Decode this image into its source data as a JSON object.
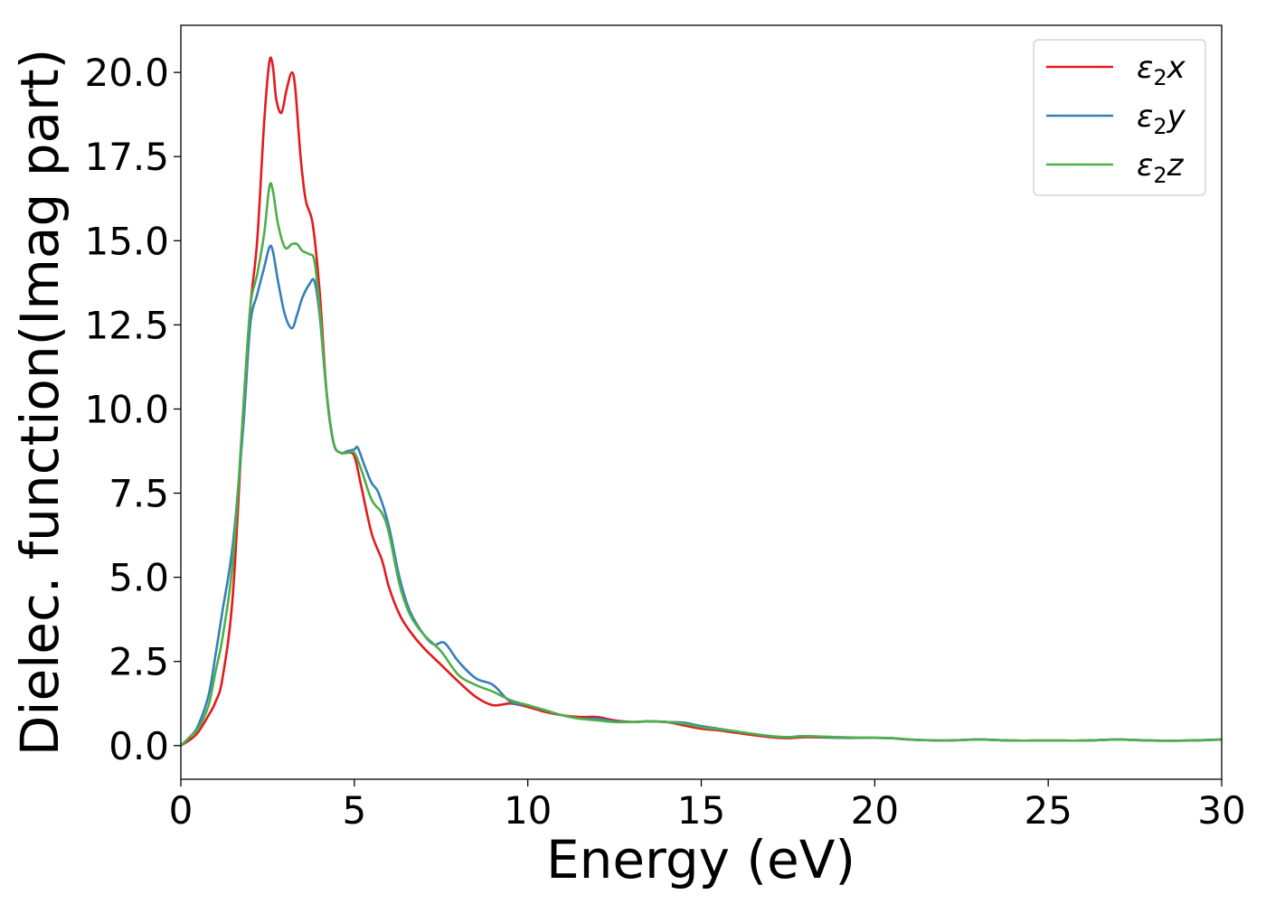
{
  "chart_data": {
    "type": "line",
    "xlabel": "Energy (eV)",
    "ylabel": "Dielec. function(Imag part)",
    "xlim": [
      0,
      30
    ],
    "ylim": [
      -1.0,
      21.4
    ],
    "xticks": [
      "0",
      "5",
      "10",
      "15",
      "20",
      "25",
      "30"
    ],
    "yticks": [
      "0.0",
      "2.5",
      "5.0",
      "7.5",
      "10.0",
      "12.5",
      "15.0",
      "17.5",
      "20.0"
    ],
    "grid": false,
    "legend_position": "top-right",
    "series": [
      {
        "name": "ε₂x",
        "label_main": "ε",
        "label_sub": "2",
        "label_tail": "x",
        "color": "#e41a1c",
        "x": [
          0,
          0.3,
          0.5,
          0.8,
          1.0,
          1.2,
          1.5,
          1.8,
          2.0,
          2.2,
          2.4,
          2.55,
          2.65,
          2.75,
          2.9,
          3.05,
          3.2,
          3.3,
          3.45,
          3.6,
          3.8,
          4.0,
          4.2,
          4.4,
          4.6,
          4.8,
          5.0,
          5.2,
          5.5,
          5.8,
          6.0,
          6.3,
          6.6,
          7.0,
          7.5,
          8.0,
          8.5,
          9.0,
          9.5,
          10.0,
          10.5,
          11.0,
          11.5,
          12.0,
          12.5,
          13.0,
          13.5,
          14.0,
          14.5,
          15.0,
          15.5,
          16.0,
          17.0,
          17.5,
          18.0,
          19.0,
          20.0,
          20.5,
          21.0,
          22.0,
          23.0,
          24.0,
          25.0,
          26.0,
          27.0,
          28.0,
          29.0,
          30.0
        ],
        "y": [
          0,
          0.2,
          0.4,
          0.9,
          1.3,
          2.0,
          4.5,
          10.0,
          13.0,
          15.0,
          18.5,
          20.3,
          20.2,
          19.2,
          18.8,
          19.5,
          20.0,
          19.5,
          17.5,
          16.2,
          15.5,
          13.5,
          10.5,
          9.0,
          8.7,
          8.7,
          8.6,
          7.7,
          6.3,
          5.5,
          4.7,
          3.9,
          3.4,
          2.9,
          2.4,
          1.9,
          1.45,
          1.2,
          1.25,
          1.15,
          1.0,
          0.9,
          0.85,
          0.85,
          0.75,
          0.7,
          0.72,
          0.7,
          0.6,
          0.5,
          0.45,
          0.38,
          0.25,
          0.22,
          0.25,
          0.23,
          0.23,
          0.22,
          0.18,
          0.15,
          0.18,
          0.15,
          0.15,
          0.15,
          0.18,
          0.15,
          0.15,
          0.18
        ]
      },
      {
        "name": "ε₂y",
        "label_main": "ε",
        "label_sub": "2",
        "label_tail": "y",
        "color": "#377eb8",
        "x": [
          0,
          0.3,
          0.5,
          0.8,
          1.0,
          1.2,
          1.5,
          1.8,
          2.0,
          2.2,
          2.4,
          2.55,
          2.65,
          2.8,
          3.0,
          3.2,
          3.35,
          3.5,
          3.7,
          3.85,
          4.0,
          4.2,
          4.4,
          4.6,
          4.8,
          5.0,
          5.1,
          5.3,
          5.5,
          5.7,
          6.0,
          6.3,
          6.6,
          7.0,
          7.3,
          7.6,
          8.0,
          8.5,
          9.0,
          9.5,
          10.0,
          10.5,
          11.0,
          11.5,
          12.0,
          12.5,
          13.0,
          13.5,
          14.0,
          14.5,
          15.0,
          15.5,
          16.0,
          17.0,
          17.5,
          18.0,
          19.0,
          20.0,
          20.5,
          21.0,
          22.0,
          23.0,
          24.0,
          25.0,
          26.0,
          27.0,
          28.0,
          29.0,
          30.0
        ],
        "y": [
          0,
          0.3,
          0.6,
          1.5,
          2.7,
          4.0,
          6.0,
          9.5,
          12.5,
          13.4,
          14.2,
          14.8,
          14.7,
          13.8,
          12.8,
          12.4,
          12.8,
          13.3,
          13.7,
          13.8,
          12.8,
          10.5,
          9.0,
          8.7,
          8.75,
          8.8,
          8.85,
          8.3,
          7.8,
          7.5,
          6.5,
          5.0,
          4.0,
          3.3,
          3.0,
          3.05,
          2.5,
          2.0,
          1.8,
          1.3,
          1.2,
          1.05,
          0.9,
          0.8,
          0.8,
          0.72,
          0.7,
          0.72,
          0.7,
          0.68,
          0.58,
          0.5,
          0.42,
          0.28,
          0.25,
          0.28,
          0.23,
          0.23,
          0.22,
          0.18,
          0.15,
          0.18,
          0.15,
          0.15,
          0.15,
          0.18,
          0.15,
          0.15,
          0.18
        ]
      },
      {
        "name": "ε₂z",
        "label_main": "ε",
        "label_sub": "2",
        "label_tail": "z",
        "color": "#4daf4a",
        "x": [
          0,
          0.3,
          0.5,
          0.8,
          1.0,
          1.2,
          1.5,
          1.8,
          2.0,
          2.2,
          2.4,
          2.55,
          2.65,
          2.8,
          3.0,
          3.2,
          3.35,
          3.5,
          3.7,
          3.85,
          4.0,
          4.2,
          4.4,
          4.6,
          4.8,
          5.0,
          5.2,
          5.5,
          5.8,
          6.0,
          6.3,
          6.6,
          7.0,
          7.5,
          8.0,
          8.5,
          9.0,
          9.5,
          10.0,
          10.5,
          11.0,
          11.5,
          12.0,
          12.5,
          13.0,
          13.5,
          14.0,
          14.5,
          15.0,
          15.5,
          16.0,
          17.0,
          17.5,
          18.0,
          19.0,
          20.0,
          20.5,
          21.0,
          22.0,
          23.0,
          24.0,
          25.0,
          26.0,
          27.0,
          28.0,
          29.0,
          30.0
        ],
        "y": [
          0,
          0.3,
          0.5,
          1.2,
          2.2,
          3.2,
          5.5,
          10.0,
          13.0,
          14.0,
          15.2,
          16.6,
          16.5,
          15.5,
          14.8,
          14.9,
          14.9,
          14.7,
          14.6,
          14.4,
          13.0,
          10.5,
          9.0,
          8.7,
          8.7,
          8.7,
          8.2,
          7.3,
          6.9,
          6.3,
          4.8,
          3.9,
          3.3,
          2.8,
          2.1,
          1.8,
          1.6,
          1.35,
          1.2,
          1.05,
          0.9,
          0.8,
          0.75,
          0.7,
          0.7,
          0.72,
          0.7,
          0.65,
          0.55,
          0.48,
          0.42,
          0.28,
          0.25,
          0.28,
          0.25,
          0.23,
          0.22,
          0.18,
          0.15,
          0.18,
          0.15,
          0.15,
          0.15,
          0.18,
          0.15,
          0.15,
          0.18
        ]
      }
    ]
  }
}
